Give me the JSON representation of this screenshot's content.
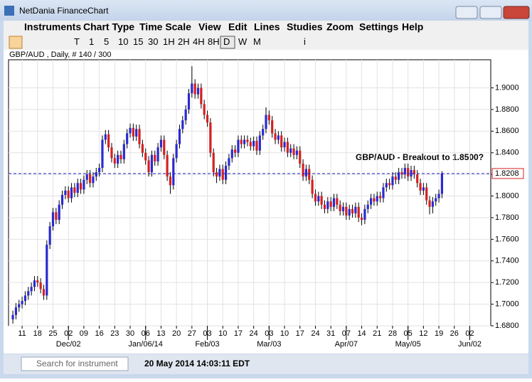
{
  "window": {
    "title": "NetDania FinanceChart"
  },
  "menu": [
    "Instruments",
    "Chart Type",
    "Time Scale",
    "View",
    "Edit",
    "Lines",
    "Studies",
    "Zoom",
    "Settings",
    "Help"
  ],
  "toolbar": {
    "timescales": [
      "T",
      "1",
      "5",
      "10",
      "15",
      "30",
      "1H",
      "2H",
      "4H",
      "8H",
      "D",
      "W",
      "M"
    ],
    "selected": "D",
    "info": "i"
  },
  "status": {
    "search_placeholder": "Search for instrument",
    "datetime": "20 May 2014 14:03:11 EDT"
  },
  "chart_data": {
    "type": "candlestick",
    "subtitle": "GBP/AUD , Daily, # 140 / 300",
    "annotation": "GBP/AUD - Breakout to 1.8500?",
    "last_price": 1.8208,
    "up_color": "#2a2ad0",
    "down_color": "#d42020",
    "grid": true,
    "xlim": [
      -1.4,
      154.8
    ],
    "ylim": [
      1.68,
      1.926
    ],
    "yticks": [
      {
        "value": 1.68,
        "label": "1.6800"
      },
      {
        "value": 1.7,
        "label": "1.7000"
      },
      {
        "value": 1.72,
        "label": "1.7200"
      },
      {
        "value": 1.74,
        "label": "1.7400"
      },
      {
        "value": 1.76,
        "label": "1.7600"
      },
      {
        "value": 1.78,
        "label": "1.7800"
      },
      {
        "value": 1.8,
        "label": "1.8000"
      },
      {
        "value": 1.82,
        "label": "1.8200"
      },
      {
        "value": 1.84,
        "label": "1.8400"
      },
      {
        "value": 1.86,
        "label": "1.8600"
      },
      {
        "value": 1.88,
        "label": "1.8800"
      },
      {
        "value": 1.9,
        "label": "1.9000"
      }
    ],
    "xticks": [
      {
        "value": 3,
        "label": "11"
      },
      {
        "value": 8,
        "label": "18"
      },
      {
        "value": 13,
        "label": "25"
      },
      {
        "value": 18,
        "label": "02"
      },
      {
        "value": 23,
        "label": "09"
      },
      {
        "value": 28,
        "label": "16"
      },
      {
        "value": 33,
        "label": "23"
      },
      {
        "value": 38,
        "label": "30"
      },
      {
        "value": 43,
        "label": "06"
      },
      {
        "value": 48,
        "label": "13"
      },
      {
        "value": 53,
        "label": "20"
      },
      {
        "value": 58,
        "label": "27"
      },
      {
        "value": 63,
        "label": "03"
      },
      {
        "value": 68,
        "label": "10"
      },
      {
        "value": 73,
        "label": "17"
      },
      {
        "value": 78,
        "label": "24"
      },
      {
        "value": 83,
        "label": "03"
      },
      {
        "value": 88,
        "label": "10"
      },
      {
        "value": 93,
        "label": "17"
      },
      {
        "value": 98,
        "label": "24"
      },
      {
        "value": 103,
        "label": "31"
      },
      {
        "value": 108,
        "label": "07"
      },
      {
        "value": 113,
        "label": "14"
      },
      {
        "value": 118,
        "label": "21"
      },
      {
        "value": 123,
        "label": "28"
      },
      {
        "value": 128,
        "label": "05"
      },
      {
        "value": 133,
        "label": "12"
      },
      {
        "value": 138,
        "label": "19"
      },
      {
        "value": 143,
        "label": "26"
      },
      {
        "value": 148,
        "label": "02"
      }
    ],
    "month_ticks": [
      {
        "value": 18,
        "label": "Dec/02"
      },
      {
        "value": 43,
        "label": "Jan/06/14"
      },
      {
        "value": 63,
        "label": "Feb/03"
      },
      {
        "value": 83,
        "label": "Mar/03"
      },
      {
        "value": 108,
        "label": "Apr/07"
      },
      {
        "value": 128,
        "label": "May/05"
      },
      {
        "value": 148,
        "label": "Jun/02"
      }
    ],
    "open": [
      1.686,
      1.69,
      1.697,
      1.7,
      1.703,
      1.708,
      1.712,
      1.716,
      1.722,
      1.72,
      1.714,
      1.708,
      1.755,
      1.772,
      1.785,
      1.778,
      1.792,
      1.801,
      1.805,
      1.798,
      1.808,
      1.803,
      1.812,
      1.806,
      1.815,
      1.82,
      1.812,
      1.818,
      1.822,
      1.826,
      1.852,
      1.857,
      1.845,
      1.835,
      1.83,
      1.838,
      1.834,
      1.848,
      1.858,
      1.863,
      1.855,
      1.862,
      1.848,
      1.84,
      1.833,
      1.822,
      1.838,
      1.832,
      1.845,
      1.852,
      1.838,
      1.818,
      1.81,
      1.835,
      1.848,
      1.862,
      1.87,
      1.88,
      1.895,
      1.904,
      1.894,
      1.9,
      1.885,
      1.875,
      1.868,
      1.84,
      1.822,
      1.818,
      1.825,
      1.815,
      1.828,
      1.835,
      1.843,
      1.84,
      1.852,
      1.848,
      1.852,
      1.85,
      1.846,
      1.851,
      1.842,
      1.856,
      1.862,
      1.875,
      1.87,
      1.858,
      1.852,
      1.856,
      1.845,
      1.85,
      1.84,
      1.844,
      1.838,
      1.842,
      1.83,
      1.818,
      1.825,
      1.815,
      1.802,
      1.795,
      1.8,
      1.792,
      1.788,
      1.795,
      1.79,
      1.798,
      1.792,
      1.786,
      1.79,
      1.782,
      1.788,
      1.784,
      1.79,
      1.78,
      1.778,
      1.788,
      1.792,
      1.798,
      1.795,
      1.8,
      1.798,
      1.808,
      1.812,
      1.81,
      1.818,
      1.815,
      1.822,
      1.82,
      1.826,
      1.818,
      1.824,
      1.82,
      1.812,
      1.805,
      1.808,
      1.796,
      1.79,
      1.795,
      1.798,
      1.802
    ],
    "high": [
      1.694,
      1.701,
      1.704,
      1.707,
      1.712,
      1.716,
      1.72,
      1.726,
      1.726,
      1.724,
      1.718,
      1.759,
      1.776,
      1.789,
      1.789,
      1.796,
      1.805,
      1.809,
      1.809,
      1.812,
      1.812,
      1.816,
      1.816,
      1.819,
      1.824,
      1.824,
      1.822,
      1.826,
      1.83,
      1.856,
      1.861,
      1.861,
      1.849,
      1.839,
      1.842,
      1.842,
      1.852,
      1.862,
      1.867,
      1.867,
      1.866,
      1.866,
      1.852,
      1.844,
      1.837,
      1.842,
      1.842,
      1.849,
      1.856,
      1.856,
      1.842,
      1.822,
      1.839,
      1.852,
      1.866,
      1.874,
      1.884,
      1.899,
      1.92,
      1.908,
      1.904,
      1.904,
      1.889,
      1.879,
      1.872,
      1.844,
      1.826,
      1.829,
      1.829,
      1.832,
      1.839,
      1.847,
      1.847,
      1.856,
      1.856,
      1.856,
      1.856,
      1.854,
      1.855,
      1.855,
      1.86,
      1.866,
      1.882,
      1.879,
      1.874,
      1.862,
      1.86,
      1.86,
      1.854,
      1.854,
      1.848,
      1.848,
      1.846,
      1.846,
      1.834,
      1.829,
      1.829,
      1.819,
      1.806,
      1.804,
      1.804,
      1.796,
      1.799,
      1.799,
      1.802,
      1.802,
      1.796,
      1.794,
      1.794,
      1.792,
      1.792,
      1.794,
      1.794,
      1.784,
      1.792,
      1.796,
      1.802,
      1.802,
      1.804,
      1.804,
      1.812,
      1.816,
      1.816,
      1.822,
      1.822,
      1.826,
      1.826,
      1.83,
      1.83,
      1.828,
      1.828,
      1.824,
      1.816,
      1.812,
      1.812,
      1.8,
      1.799,
      1.802,
      1.806,
      1.823
    ],
    "low": [
      1.682,
      1.686,
      1.693,
      1.696,
      1.699,
      1.704,
      1.708,
      1.712,
      1.716,
      1.71,
      1.704,
      1.704,
      1.751,
      1.768,
      1.774,
      1.774,
      1.788,
      1.797,
      1.794,
      1.794,
      1.799,
      1.799,
      1.802,
      1.802,
      1.811,
      1.808,
      1.808,
      1.814,
      1.818,
      1.822,
      1.848,
      1.841,
      1.831,
      1.826,
      1.826,
      1.83,
      1.83,
      1.844,
      1.854,
      1.851,
      1.851,
      1.844,
      1.836,
      1.829,
      1.818,
      1.818,
      1.828,
      1.828,
      1.841,
      1.834,
      1.814,
      1.802,
      1.806,
      1.831,
      1.844,
      1.858,
      1.866,
      1.876,
      1.891,
      1.89,
      1.89,
      1.881,
      1.871,
      1.864,
      1.836,
      1.818,
      1.812,
      1.814,
      1.811,
      1.811,
      1.824,
      1.831,
      1.836,
      1.836,
      1.844,
      1.844,
      1.846,
      1.842,
      1.842,
      1.838,
      1.838,
      1.852,
      1.858,
      1.866,
      1.854,
      1.848,
      1.848,
      1.841,
      1.841,
      1.836,
      1.836,
      1.834,
      1.834,
      1.826,
      1.814,
      1.814,
      1.811,
      1.798,
      1.791,
      1.791,
      1.788,
      1.784,
      1.784,
      1.786,
      1.786,
      1.788,
      1.782,
      1.782,
      1.778,
      1.778,
      1.78,
      1.78,
      1.776,
      1.773,
      1.774,
      1.784,
      1.788,
      1.791,
      1.791,
      1.794,
      1.794,
      1.804,
      1.806,
      1.806,
      1.811,
      1.811,
      1.816,
      1.816,
      1.814,
      1.814,
      1.816,
      1.808,
      1.801,
      1.801,
      1.792,
      1.783,
      1.784,
      1.791,
      1.794,
      1.798
    ],
    "close": [
      1.69,
      1.697,
      1.7,
      1.703,
      1.708,
      1.712,
      1.716,
      1.722,
      1.72,
      1.714,
      1.708,
      1.755,
      1.772,
      1.785,
      1.778,
      1.792,
      1.801,
      1.805,
      1.798,
      1.808,
      1.803,
      1.812,
      1.806,
      1.815,
      1.82,
      1.812,
      1.818,
      1.822,
      1.826,
      1.852,
      1.857,
      1.845,
      1.835,
      1.83,
      1.838,
      1.834,
      1.848,
      1.858,
      1.863,
      1.855,
      1.862,
      1.848,
      1.84,
      1.833,
      1.822,
      1.838,
      1.832,
      1.845,
      1.852,
      1.838,
      1.818,
      1.81,
      1.835,
      1.848,
      1.862,
      1.87,
      1.88,
      1.895,
      1.904,
      1.894,
      1.9,
      1.885,
      1.875,
      1.868,
      1.84,
      1.822,
      1.818,
      1.825,
      1.815,
      1.828,
      1.835,
      1.843,
      1.84,
      1.852,
      1.848,
      1.852,
      1.85,
      1.846,
      1.851,
      1.842,
      1.856,
      1.862,
      1.875,
      1.87,
      1.858,
      1.852,
      1.856,
      1.845,
      1.85,
      1.84,
      1.844,
      1.838,
      1.842,
      1.83,
      1.818,
      1.825,
      1.815,
      1.802,
      1.795,
      1.8,
      1.792,
      1.788,
      1.795,
      1.79,
      1.798,
      1.792,
      1.786,
      1.79,
      1.782,
      1.788,
      1.784,
      1.79,
      1.78,
      1.778,
      1.788,
      1.792,
      1.798,
      1.795,
      1.8,
      1.798,
      1.808,
      1.812,
      1.81,
      1.818,
      1.815,
      1.822,
      1.82,
      1.826,
      1.818,
      1.824,
      1.82,
      1.812,
      1.805,
      1.808,
      1.796,
      1.79,
      1.795,
      1.798,
      1.802,
      1.821
    ]
  }
}
